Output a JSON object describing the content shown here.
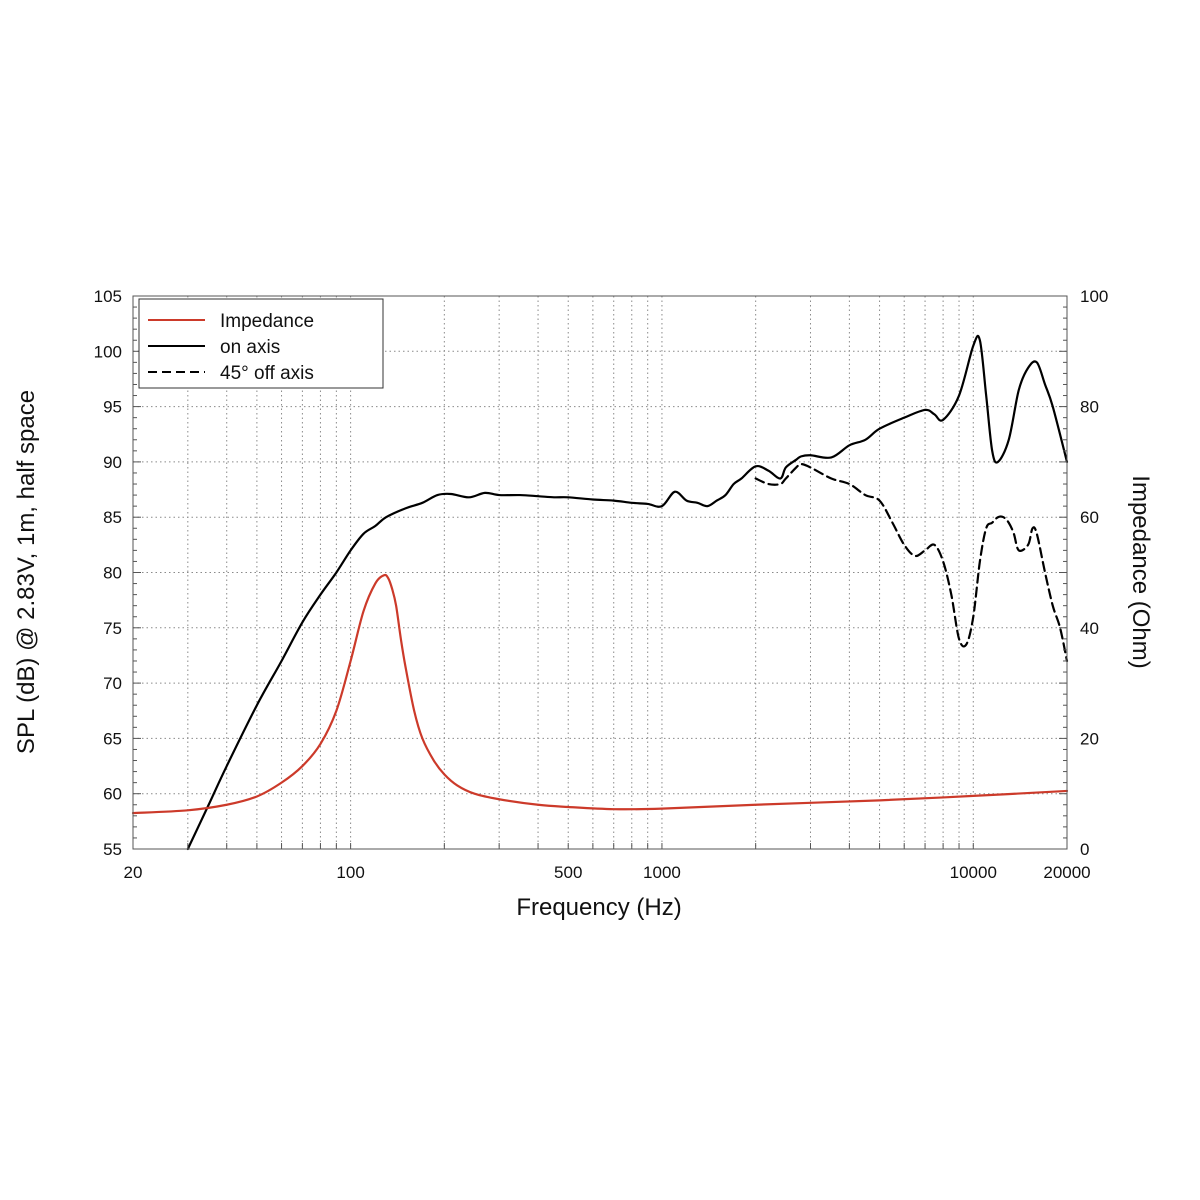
{
  "chart_data": {
    "type": "line",
    "title": "",
    "xlabel": "Frequency (Hz)",
    "ylabel": "SPL (dB) @ 2.83V, 1m, half space",
    "y2label": "Impedance (Ohm)",
    "xscale": "log",
    "xlim": [
      20,
      20000
    ],
    "ylim": [
      55,
      105
    ],
    "y2lim": [
      0,
      100
    ],
    "grid": true,
    "legend_position": "top-left",
    "x_ticks": [
      20,
      100,
      500,
      1000,
      10000,
      20000
    ],
    "x_tick_labels": [
      "20",
      "100",
      "500",
      "1000",
      "10000",
      "20000"
    ],
    "y_ticks": [
      55,
      60,
      65,
      70,
      75,
      80,
      85,
      90,
      95,
      100,
      105
    ],
    "y_tick_labels": [
      "55",
      "60",
      "65",
      "70",
      "75",
      "80",
      "85",
      "90",
      "95",
      "100",
      "105"
    ],
    "y2_ticks": [
      0,
      20,
      40,
      60,
      80,
      100
    ],
    "y2_tick_labels": [
      "0",
      "20",
      "40",
      "60",
      "80",
      "100"
    ],
    "series": [
      {
        "name": "Impedance",
        "axis": "right",
        "color": "#cc3a2a",
        "style": "solid",
        "x": [
          20,
          30,
          40,
          50,
          60,
          70,
          80,
          90,
          100,
          110,
          120,
          128,
          132,
          136,
          140,
          145,
          150,
          160,
          170,
          185,
          200,
          220,
          250,
          300,
          400,
          500,
          700,
          1000,
          2000,
          5000,
          10000,
          20000
        ],
        "y": [
          6.5,
          7.0,
          8.0,
          9.5,
          12.0,
          15.0,
          19.0,
          25.0,
          34.0,
          43.0,
          48.0,
          49.5,
          49.0,
          47.0,
          44.0,
          38.0,
          33.0,
          25.0,
          20.0,
          16.0,
          13.5,
          11.5,
          10.0,
          9.0,
          8.0,
          7.6,
          7.2,
          7.3,
          8.0,
          8.8,
          9.6,
          10.5
        ]
      },
      {
        "name": "on axis",
        "axis": "left",
        "color": "#000000",
        "style": "solid",
        "x": [
          30,
          35,
          40,
          50,
          60,
          70,
          80,
          90,
          100,
          110,
          120,
          130,
          150,
          170,
          190,
          210,
          240,
          270,
          300,
          350,
          400,
          450,
          500,
          600,
          700,
          800,
          900,
          1000,
          1100,
          1200,
          1300,
          1400,
          1500,
          1600,
          1700,
          1800,
          2000,
          2200,
          2400,
          2500,
          2700,
          2800,
          3000,
          3500,
          4000,
          4500,
          5000,
          6000,
          7000,
          7500,
          8000,
          9000,
          10000,
          10500,
          11000,
          11500,
          12000,
          13000,
          14000,
          15000,
          16000,
          17000,
          18000,
          20000
        ],
        "y": [
          55,
          59,
          62.5,
          68,
          72,
          75.5,
          78,
          80,
          82,
          83.5,
          84.2,
          85,
          85.8,
          86.3,
          87,
          87.1,
          86.8,
          87.2,
          87,
          87,
          86.9,
          86.8,
          86.8,
          86.6,
          86.5,
          86.3,
          86.2,
          86,
          87.3,
          86.5,
          86.3,
          86,
          86.5,
          87,
          88,
          88.5,
          89.6,
          89.2,
          88.5,
          89.5,
          90.2,
          90.5,
          90.6,
          90.4,
          91.5,
          92,
          93,
          94,
          94.7,
          94.3,
          93.8,
          96,
          100.5,
          101,
          96,
          91,
          90,
          92,
          96.5,
          98.5,
          99,
          97,
          95,
          90
        ]
      },
      {
        "name": "45° off axis",
        "axis": "left",
        "color": "#000000",
        "style": "dashed",
        "x": [
          2000,
          2200,
          2400,
          2500,
          2700,
          2800,
          3000,
          3500,
          4000,
          4500,
          5000,
          5500,
          6000,
          6500,
          7000,
          7500,
          8000,
          8500,
          9000,
          9500,
          10000,
          10500,
          11000,
          11500,
          12000,
          12500,
          13000,
          13500,
          14000,
          15000,
          15500,
          16000,
          17000,
          18000,
          19000,
          20000
        ],
        "y": [
          88.5,
          88,
          88,
          88.5,
          89.5,
          89.8,
          89.5,
          88.5,
          88,
          87,
          86.5,
          84.5,
          82.5,
          81.5,
          82,
          82.5,
          81,
          78,
          74,
          73.5,
          76,
          81,
          84,
          84.5,
          85,
          85,
          84.5,
          83.5,
          82,
          82.5,
          84,
          83.5,
          80,
          77,
          75,
          72
        ]
      }
    ]
  }
}
